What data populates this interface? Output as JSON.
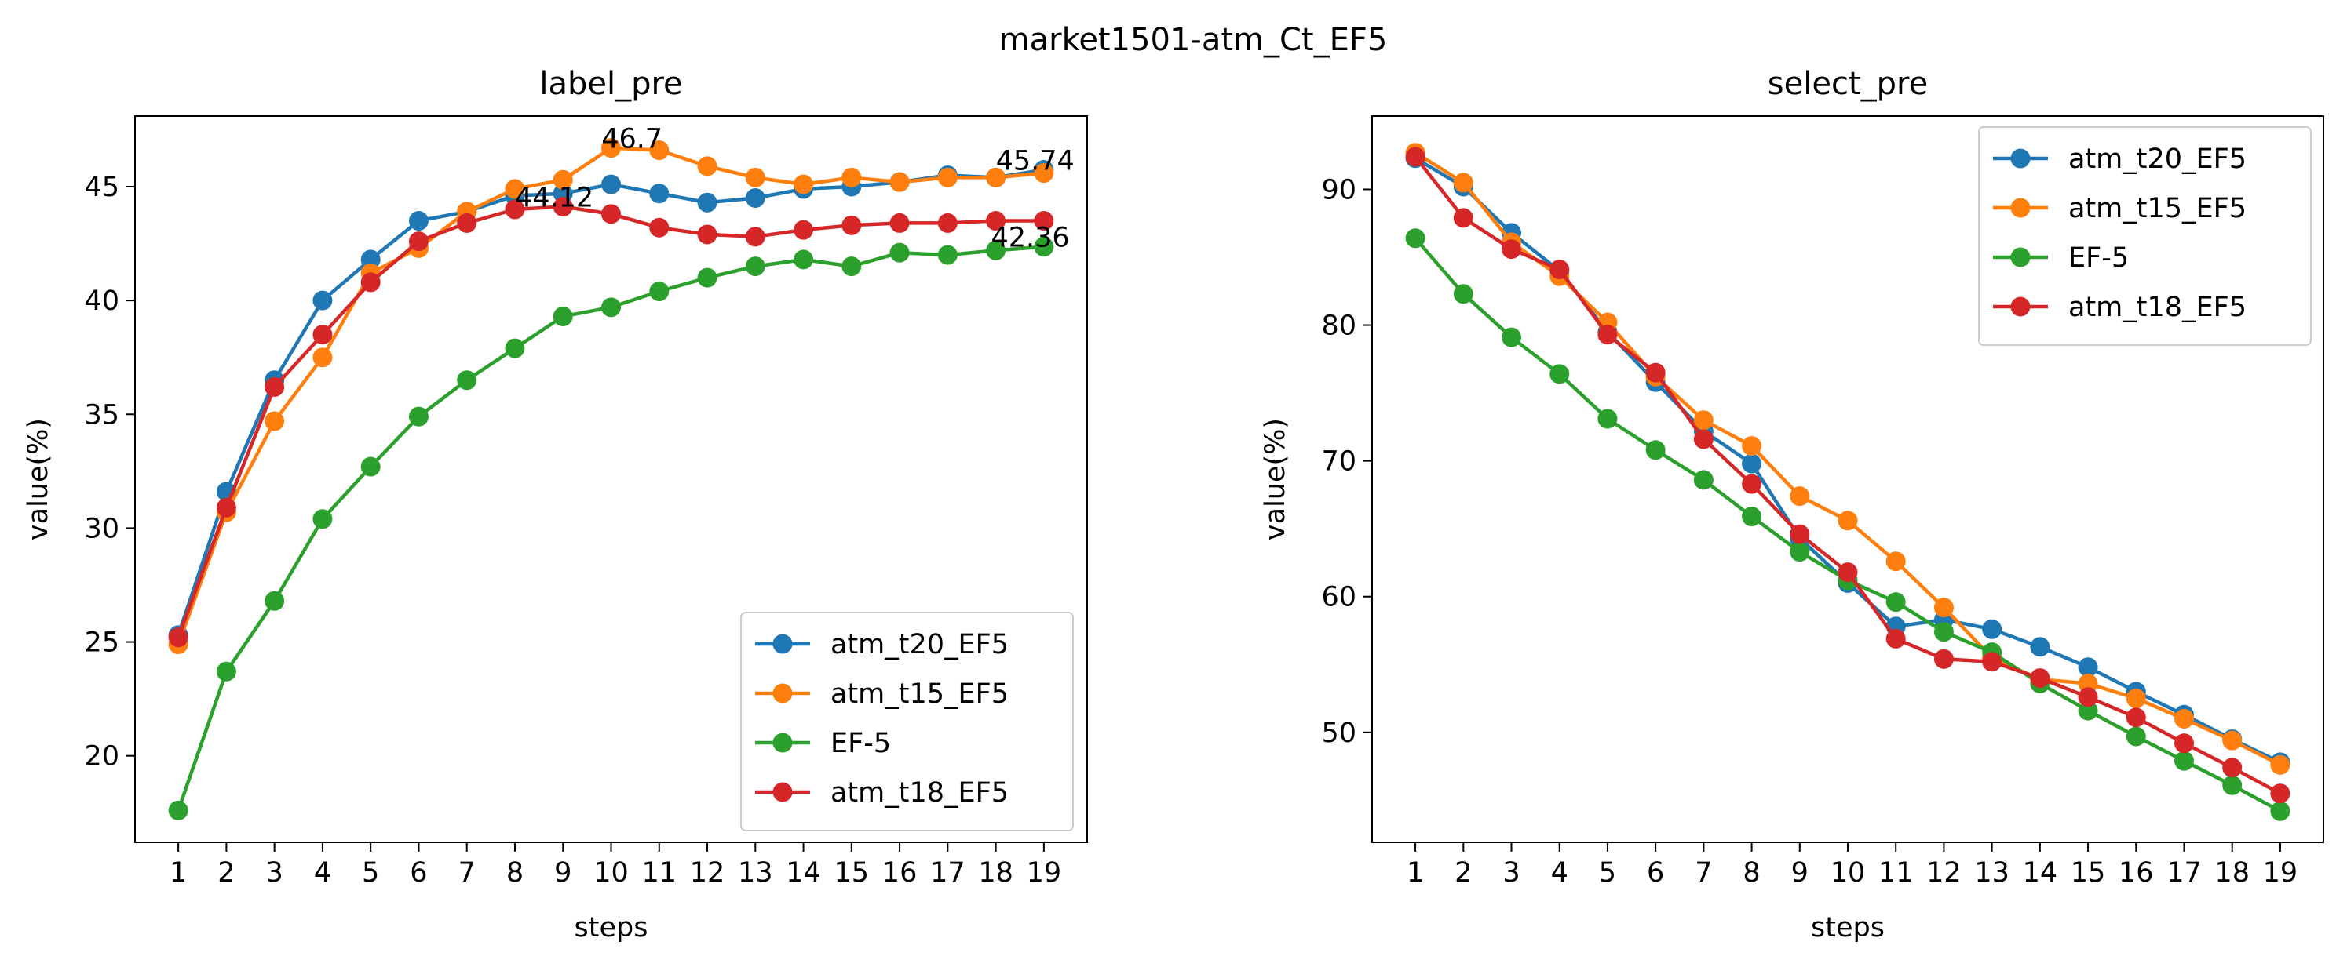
{
  "suptitle": "market1501-atm_Ct_EF5",
  "colors": {
    "atm_t20_EF5": "#1f77b4",
    "atm_t15_EF5": "#ff7f0e",
    "EF-5": "#2ca02c",
    "atm_t18_EF5": "#d62728"
  },
  "chart_data": [
    {
      "type": "line",
      "title": "label_pre",
      "xlabel": "steps",
      "ylabel": "value(%)",
      "x": [
        1,
        2,
        3,
        4,
        5,
        6,
        7,
        8,
        9,
        10,
        11,
        12,
        13,
        14,
        15,
        16,
        17,
        18,
        19
      ],
      "xticks": [
        "1",
        "2",
        "3",
        "4",
        "5",
        "6",
        "7",
        "8",
        "9",
        "10",
        "11",
        "12",
        "13",
        "14",
        "15",
        "16",
        "17",
        "18",
        "19"
      ],
      "yticks": [
        "20",
        "25",
        "30",
        "35",
        "40",
        "45"
      ],
      "ylim": [
        16.2,
        48.1
      ],
      "legend_position": "lower right",
      "series": [
        {
          "name": "atm_t20_EF5",
          "values": [
            25.3,
            31.6,
            36.5,
            40.0,
            41.8,
            43.5,
            43.9,
            44.6,
            44.7,
            45.1,
            44.7,
            44.3,
            44.5,
            44.9,
            45.0,
            45.2,
            45.5,
            45.4,
            45.74
          ]
        },
        {
          "name": "atm_t15_EF5",
          "values": [
            24.9,
            30.7,
            34.7,
            37.5,
            41.2,
            42.3,
            43.9,
            44.9,
            45.3,
            46.7,
            46.6,
            45.9,
            45.4,
            45.1,
            45.4,
            45.2,
            45.4,
            45.4,
            45.6
          ]
        },
        {
          "name": "EF-5",
          "values": [
            17.6,
            23.7,
            26.8,
            30.4,
            32.7,
            34.9,
            36.5,
            37.9,
            39.3,
            39.7,
            40.4,
            41.0,
            41.5,
            41.8,
            41.5,
            42.1,
            42.0,
            42.2,
            42.36
          ]
        },
        {
          "name": "atm_t18_EF5",
          "values": [
            25.2,
            30.9,
            36.2,
            38.5,
            40.8,
            42.6,
            43.4,
            44.0,
            44.12,
            43.8,
            43.2,
            42.9,
            42.8,
            43.1,
            43.3,
            43.4,
            43.4,
            43.5,
            43.5
          ]
        }
      ],
      "annotations": [
        {
          "text": "46.7",
          "x": 9.8,
          "y": 46.7
        },
        {
          "text": "45.74",
          "x": 18.0,
          "y": 45.74
        },
        {
          "text": "44.12",
          "x": 8.0,
          "y": 44.12
        },
        {
          "text": "42.36",
          "x": 17.9,
          "y": 42.36
        }
      ]
    },
    {
      "type": "line",
      "title": "select_pre",
      "xlabel": "steps",
      "ylabel": "value(%)",
      "x": [
        1,
        2,
        3,
        4,
        5,
        6,
        7,
        8,
        9,
        10,
        11,
        12,
        13,
        14,
        15,
        16,
        17,
        18,
        19
      ],
      "xticks": [
        "1",
        "2",
        "3",
        "4",
        "5",
        "6",
        "7",
        "8",
        "9",
        "10",
        "11",
        "12",
        "13",
        "14",
        "15",
        "16",
        "17",
        "18",
        "19"
      ],
      "yticks": [
        "50",
        "60",
        "70",
        "80",
        "90"
      ],
      "ylim": [
        41.9,
        95.4
      ],
      "legend_position": "upper right",
      "series": [
        {
          "name": "atm_t20_EF5",
          "values": [
            92.3,
            90.2,
            86.8,
            84.0,
            79.5,
            75.8,
            72.2,
            69.8,
            64.3,
            61.0,
            57.8,
            58.3,
            57.6,
            56.3,
            54.8,
            53.0,
            51.3,
            49.5,
            47.8
          ]
        },
        {
          "name": "atm_t15_EF5",
          "values": [
            92.7,
            90.5,
            86.1,
            83.6,
            80.2,
            76.2,
            73.0,
            71.1,
            67.4,
            65.6,
            62.6,
            59.2,
            55.5,
            53.9,
            53.6,
            52.5,
            51.0,
            49.4,
            47.6
          ]
        },
        {
          "name": "EF-5",
          "values": [
            86.4,
            82.3,
            79.1,
            76.4,
            73.1,
            70.8,
            68.6,
            65.9,
            63.3,
            61.2,
            59.6,
            57.4,
            55.9,
            53.6,
            51.6,
            49.7,
            47.9,
            46.1,
            44.2
          ]
        },
        {
          "name": "atm_t18_EF5",
          "values": [
            92.4,
            87.9,
            85.6,
            84.1,
            79.3,
            76.5,
            71.6,
            68.3,
            64.6,
            61.8,
            56.9,
            55.4,
            55.2,
            54.0,
            52.6,
            51.1,
            49.2,
            47.4,
            45.5
          ]
        }
      ],
      "annotations": []
    }
  ]
}
